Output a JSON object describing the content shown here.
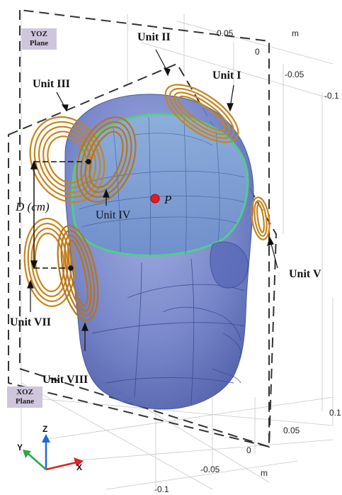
{
  "planes": {
    "yoz": "YOZ\nPlane",
    "xoz": "XOZ\nPlane"
  },
  "units": {
    "u1": "Unit I",
    "u2": "Unit II",
    "u3": "Unit III",
    "u4": "Unit IV",
    "u5": "Unit V",
    "u7": "Unit VII",
    "u8": "Unit VIII"
  },
  "annotations": {
    "distance": "D (cm)",
    "point": "P"
  },
  "ticks": {
    "t_005_top": "0.05",
    "m_top": "m",
    "t_0_top": "0",
    "t_m005_top": "-0.05",
    "t_m01_top": "-0.1",
    "t_01_right": "0.1",
    "t_005_right": "0.05",
    "t_0_bottom": "0",
    "t_m005_bottom": "-0.05",
    "m_bottom": "m",
    "t_m01_bottom": "-0.1"
  },
  "axes": {
    "z": "Z",
    "y": "Y",
    "x": "X"
  },
  "colors": {
    "head": "#6f80c8",
    "coil": "#c8841c",
    "highlight": "#4fd08a",
    "point": "#e51c1c",
    "plane_label_bg": "#cfc6dd"
  }
}
